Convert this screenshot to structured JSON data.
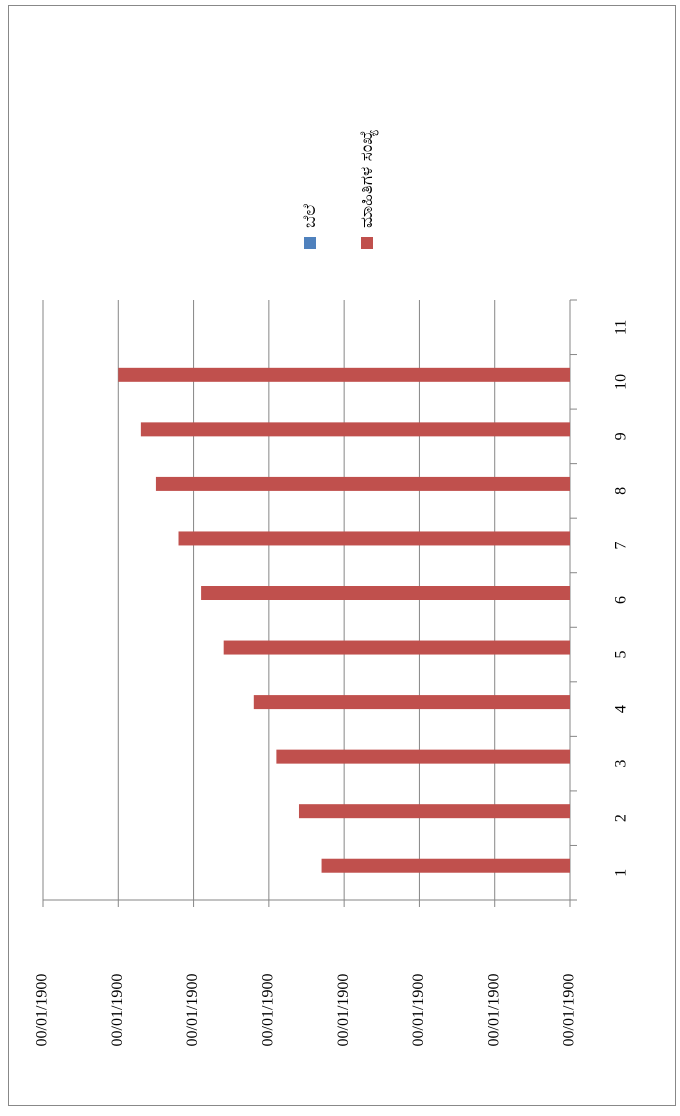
{
  "chart_data": {
    "type": "bar",
    "categories": [
      1,
      2,
      3,
      4,
      5,
      6,
      7,
      8,
      9,
      10,
      11
    ],
    "series": [
      {
        "name": "ಬೆಲೆ",
        "color": "#4f81bd",
        "values": [
          null,
          null,
          null,
          null,
          null,
          null,
          null,
          null,
          null,
          null,
          null
        ]
      },
      {
        "name": "ಮಾಹಿತಿಗಳ ಸಂಖ್ಯೆ",
        "color": "#c0504d",
        "values": [
          0.33,
          0.36,
          0.39,
          0.42,
          0.46,
          0.49,
          0.52,
          0.55,
          0.57,
          0.6,
          null
        ]
      }
    ],
    "ylim": [
      0,
      0.7
    ],
    "yticks": [
      {
        "value": 0,
        "label": "00/01/1900"
      },
      {
        "value": 0.1,
        "label": "00/01/1900"
      },
      {
        "value": 0.2,
        "label": "00/01/1900"
      },
      {
        "value": 0.3,
        "label": "00/01/1900"
      },
      {
        "value": 0.4,
        "label": "00/01/1900"
      },
      {
        "value": 0.5,
        "label": "00/01/1900"
      },
      {
        "value": 0.6,
        "label": "00/01/1900"
      },
      {
        "value": 0.7,
        "label": "00/01/1900"
      }
    ],
    "grid": true
  }
}
